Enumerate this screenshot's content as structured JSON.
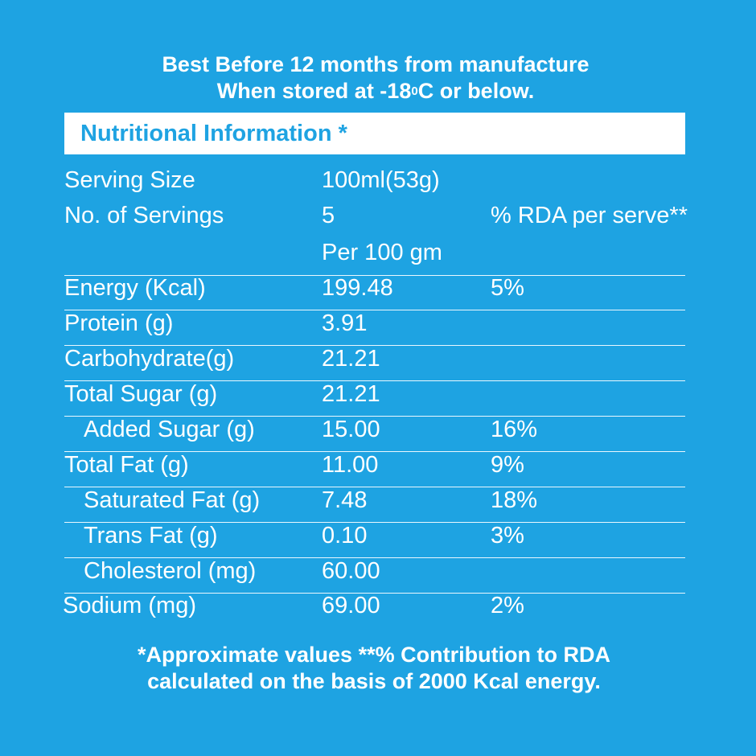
{
  "storage": {
    "line1": "Best Before 12 months from manufacture",
    "line2_prefix": "When stored at -18",
    "line2_sup": "0",
    "line2_suffix": "C or below."
  },
  "header": {
    "title": "Nutritional Information *"
  },
  "meta": {
    "serving_size_label": "Serving Size",
    "serving_size_value": "100ml(53g)",
    "servings_label": "No. of Servings",
    "servings_value": "5",
    "rda_header": "% RDA per serve**",
    "per_label": "Per 100 gm"
  },
  "nutrients": [
    {
      "label": "Energy (Kcal)",
      "value": "199.48",
      "rda": "5%"
    },
    {
      "label": "Protein (g)",
      "value": "3.91",
      "rda": ""
    },
    {
      "label": "Carbohydrate(g)",
      "value": "21.21",
      "rda": ""
    },
    {
      "label": "Total Sugar (g)",
      "value": "21.21",
      "rda": ""
    },
    {
      "label": "Added Sugar (g)",
      "value": "15.00",
      "rda": "16%"
    },
    {
      "label": "Total Fat (g)",
      "value": "11.00",
      "rda": "9%"
    },
    {
      "label": "Saturated Fat (g)",
      "value": "7.48",
      "rda": "18%"
    },
    {
      "label": "Trans Fat (g)",
      "value": "0.10",
      "rda": "3%"
    },
    {
      "label": "Cholesterol (mg)",
      "value": "60.00",
      "rda": ""
    },
    {
      "label": "Sodium (mg)",
      "value": "69.00",
      "rda": "2%"
    }
  ],
  "footnote": {
    "line1": "*Approximate values **% Contribution to RDA",
    "line2": "calculated on the basis of 2000 Kcal energy."
  },
  "colors": {
    "background": "#1ea3e2",
    "text": "#ffffff",
    "header_text": "#1ea3e2"
  }
}
